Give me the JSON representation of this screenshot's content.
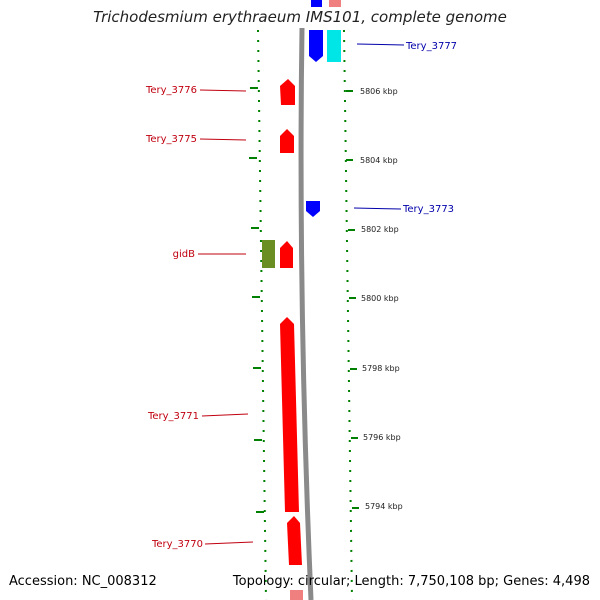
{
  "title": "Trichodesmium erythraeum IMS101, complete genome",
  "footer": {
    "accession": "Accession: NC_008312",
    "summary": "Topology: circular; Length: 7,750,108 bp; Genes: 4,498"
  },
  "colors": {
    "forward_gene": "#ff0000",
    "reverse_gene": "#0000ff",
    "rna_gene": "#00e5e5",
    "other_gene": "#6b8e23",
    "ruler": "#008000",
    "backbone": "#8a8a8a",
    "label_red": "#c0000f",
    "label_blue": "#0000aa"
  },
  "ticks": [
    {
      "label": "5806 kbp"
    },
    {
      "label": "5804 kbp"
    },
    {
      "label": "5802 kbp"
    },
    {
      "label": "5800 kbp"
    },
    {
      "label": "5798 kbp"
    },
    {
      "label": "5796 kbp"
    },
    {
      "label": "5794 kbp"
    }
  ],
  "genes": [
    {
      "name": "Tery_3777",
      "strand": "reverse"
    },
    {
      "name": "Tery_3776",
      "strand": "forward"
    },
    {
      "name": "Tery_3775",
      "strand": "forward"
    },
    {
      "name": "Tery_3773",
      "strand": "reverse"
    },
    {
      "name": "gidB",
      "strand": "forward"
    },
    {
      "name": "Tery_3771",
      "strand": "forward"
    },
    {
      "name": "Tery_3770",
      "strand": "forward"
    }
  ]
}
